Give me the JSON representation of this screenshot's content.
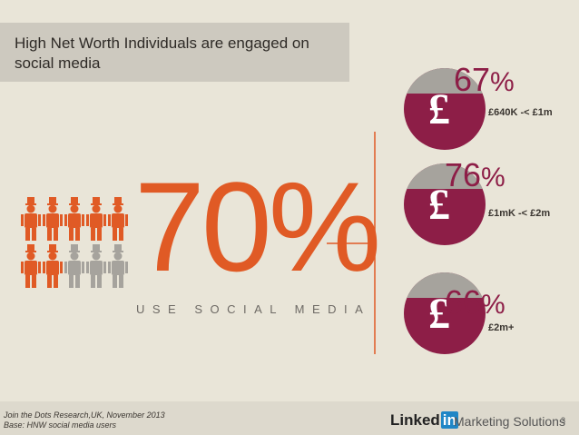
{
  "header": {
    "title": "High Net Worth Individuals are engaged on social media"
  },
  "headline": {
    "value": 70,
    "unit": "%",
    "caption": "USE SOCIAL MEDIA"
  },
  "coin_symbol": "£",
  "segments": [
    {
      "value": 67,
      "unit": "%",
      "label": "£640K -< £1m"
    },
    {
      "value": 76,
      "unit": "%",
      "label": "£1mK -< £2m"
    },
    {
      "value": 66,
      "unit": "%",
      "label": "£2m+"
    }
  ],
  "footer": {
    "source": "Join the Dots Research,UK, November 2013",
    "base": "Base: HNW social media users",
    "brand": "Linked",
    "brand_in": "in",
    "product": "Marketing Solutions",
    "page": "3"
  }
}
